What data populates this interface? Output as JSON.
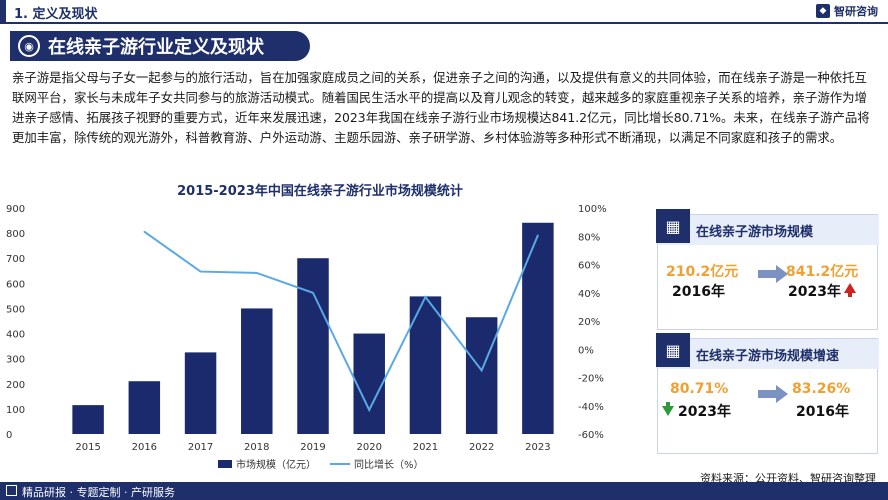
{
  "header": {
    "section": "1. 定义及现状",
    "logo_text": "智研咨询"
  },
  "title": "在线亲子游行业定义及现状",
  "intro": "亲子游是指父母与子女一起参与的旅行活动，旨在加强家庭成员之间的关系，促进亲子之间的沟通，以及提供有意义的共同体验，而在线亲子游是一种依托互联网平台，家长与未成年子女共同参与的旅游活动模式。随着国民生活水平的提高以及育儿观念的转变，越来越多的家庭重视亲子关系的培养，亲子游作为增进亲子感情、拓展孩子视野的重要方式，近年来发展迅速，2023年我国在线亲子游行业市场规模达841.2亿元，同比增长80.71%。未来，在线亲子游产品将更加丰富，除传统的观光游外，科普教育游、户外运动游、主题乐园游、亲子研学游、乡村体验游等多种形式不断涌现，以满足不同家庭和孩子的需求。",
  "chart_data": {
    "type": "bar",
    "title": "2015-2023年中国在线亲子游行业市场规模统计",
    "categories": [
      "2015",
      "2016",
      "2017",
      "2018",
      "2019",
      "2020",
      "2021",
      "2022",
      "2023"
    ],
    "series": [
      {
        "name": "市场规模（亿元）",
        "type": "bar",
        "axis": "left",
        "values": [
          115,
          210.2,
          325,
          500,
          700,
          400,
          548,
          465,
          841.2
        ]
      },
      {
        "name": "同比增长（%）",
        "type": "line",
        "axis": "right",
        "values": [
          null,
          83.26,
          55,
          54,
          40,
          -43,
          37,
          -15,
          80.71
        ]
      }
    ],
    "ylim_left": [
      0,
      900
    ],
    "yticks_left": [
      "0",
      "100",
      "200",
      "300",
      "400",
      "500",
      "600",
      "700",
      "800",
      "900"
    ],
    "ylim_right": [
      -60,
      100
    ],
    "yticks_right": [
      "-60%",
      "-40%",
      "-20%",
      "0%",
      "20%",
      "40%",
      "60%",
      "80%",
      "100%"
    ],
    "legend_position": "bottom",
    "colors": {
      "bar": "#1a2a6c",
      "line": "#5aa9e6"
    }
  },
  "card_scale": {
    "title": "在线亲子游市场规模",
    "left_value": "210.2亿元",
    "left_year": "2016年",
    "right_value": "841.2亿元",
    "right_year": "2023年"
  },
  "card_growth": {
    "title": "在线亲子游市场规模增速",
    "left_value": "80.71%",
    "left_year": "2023年",
    "right_value": "83.26%",
    "right_year": "2016年"
  },
  "source": "资料来源：公开资料、智研咨询整理",
  "footer": "精品研报 · 专题定制 · 产研服务"
}
